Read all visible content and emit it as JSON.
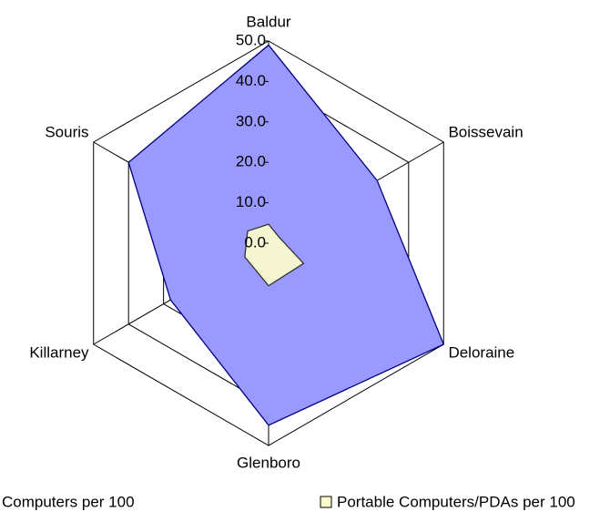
{
  "chart_data": {
    "type": "radar",
    "categories": [
      "Baldur",
      "Boissevain",
      "Deloraine",
      "Glenboro",
      "Killarney",
      "Souris"
    ],
    "series": [
      {
        "name": "Computers per 100",
        "color": "#9999ff",
        "values": [
          49,
          31,
          50,
          45,
          28,
          40
        ]
      },
      {
        "name": "Portable Computers/PDAs per 100",
        "color": "#ffffcc",
        "values": [
          4.7,
          3,
          10,
          10.5,
          6.8,
          6
        ]
      }
    ],
    "ylim": [
      0,
      50
    ],
    "yticks": [
      {
        "value": 0,
        "label": "0.0"
      },
      {
        "value": 10,
        "label": "10.0"
      },
      {
        "value": 20,
        "label": "20.0"
      },
      {
        "value": 30,
        "label": "30.0"
      },
      {
        "value": 40,
        "label": "40.0"
      },
      {
        "value": 50,
        "label": "50.0"
      }
    ],
    "grid": true
  }
}
